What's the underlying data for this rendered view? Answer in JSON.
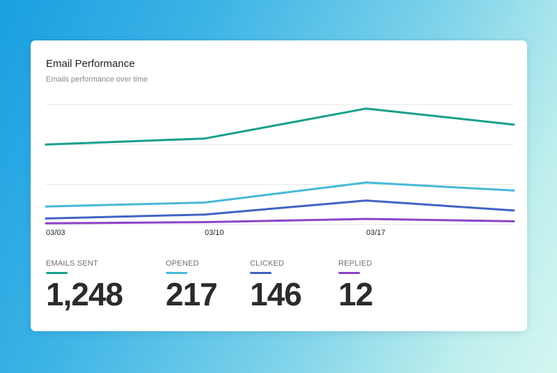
{
  "card": {
    "title": "Email Performance",
    "subtitle": "Emails performance over time"
  },
  "chart_data": {
    "type": "line",
    "x": [
      "03/03",
      "03/10",
      "03/17",
      ""
    ],
    "x_tick_labels": [
      "03/03",
      "03/10",
      "03/17"
    ],
    "ylim": [
      0,
      300
    ],
    "grid": true,
    "series": [
      {
        "name": "EMAILS SENT",
        "color": "#16a08b",
        "values": [
          200,
          215,
          290,
          250
        ]
      },
      {
        "name": "OPENED",
        "color": "#45b9d9",
        "values": [
          45,
          55,
          105,
          85
        ]
      },
      {
        "name": "CLICKED",
        "color": "#3f64c4",
        "values": [
          15,
          25,
          60,
          35
        ]
      },
      {
        "name": "REPLIED",
        "color": "#8d42c7",
        "values": [
          3,
          6,
          14,
          8
        ]
      }
    ]
  },
  "stats": [
    {
      "label": "EMAILS SENT",
      "value": "1,248",
      "color": "#16a08b"
    },
    {
      "label": "OPENED",
      "value": "217",
      "color": "#45b9d9"
    },
    {
      "label": "CLICKED",
      "value": "146",
      "color": "#3f64c4"
    },
    {
      "label": "REPLIED",
      "value": "12",
      "color": "#8d42c7"
    }
  ]
}
